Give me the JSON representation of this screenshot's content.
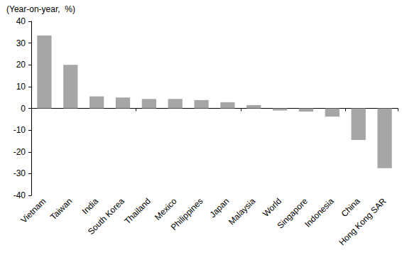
{
  "chart_data": {
    "type": "bar",
    "ylabel": "(Year-on-year,  %)",
    "categories": [
      "Vietnam",
      "Taiwan",
      "India",
      "South Korea",
      "Thailand",
      "Mexico",
      "Philippines",
      "Japan",
      "Malaysia",
      "World",
      "Singapore",
      "Indonesia",
      "China",
      "Hong Kong SAR"
    ],
    "values": [
      33.5,
      20,
      5.5,
      5,
      4.3,
      4.3,
      3.8,
      2.8,
      1.5,
      -1,
      -1.5,
      -3.8,
      -14.5,
      -27.5
    ],
    "color": "#a6a6a6",
    "ylim": [
      -40,
      40
    ],
    "yticks": [
      -40,
      -30,
      -20,
      -10,
      0,
      10,
      20,
      30,
      40
    ],
    "grid": false
  }
}
